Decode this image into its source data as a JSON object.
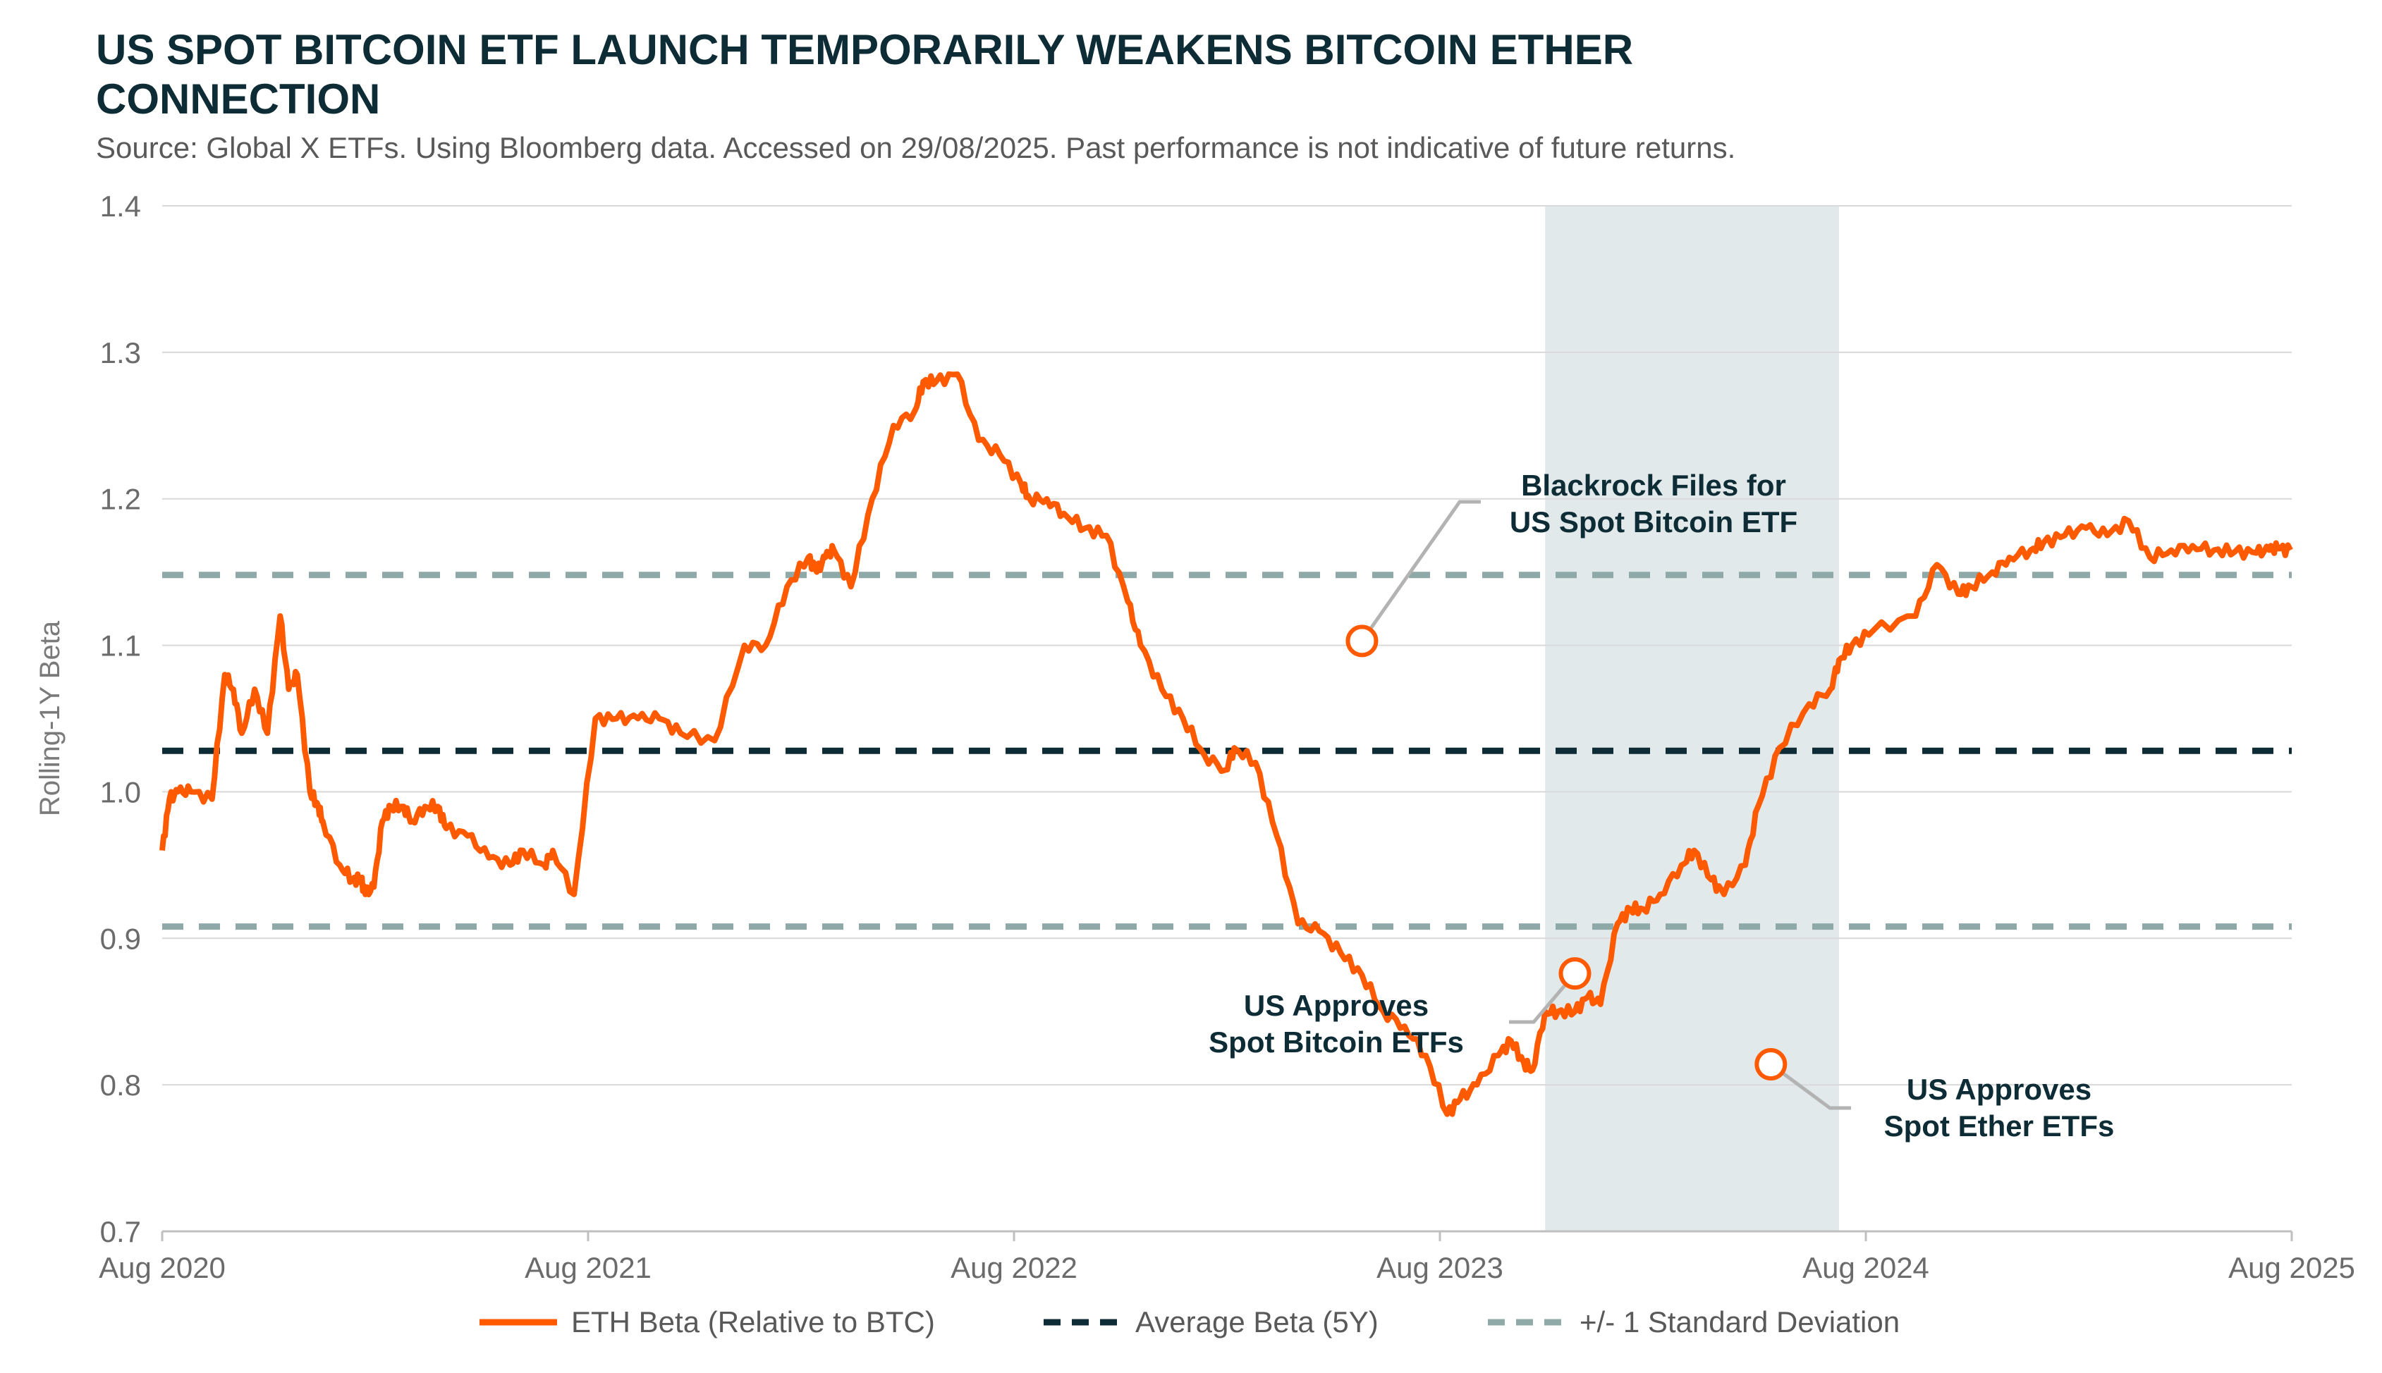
{
  "title": "US SPOT BITCOIN ETF LAUNCH TEMPORARILY WEAKENS BITCOIN ETHER CONNECTION",
  "subtitle": "Source: Global X ETFs. Using Bloomberg data. Accessed on 29/08/2025. Past performance is not indicative of future returns.",
  "colors": {
    "eth": "#ff5a00",
    "avg": "#0d2c35",
    "std": "#8fa9a9",
    "shade": "#e2e9ea",
    "grid": "#d9d9d9"
  },
  "chart_data": {
    "type": "line",
    "ylabel": "Rolling-1Y Beta",
    "ylim": [
      0.7,
      1.4
    ],
    "yticks": [
      "0.7",
      "0.8",
      "0.9",
      "1.0",
      "1.1",
      "1.2",
      "1.3",
      "1.4"
    ],
    "xlim": [
      2020.583,
      2025.583
    ],
    "xticks": [
      {
        "x": 2020.583,
        "label": "Aug 2020"
      },
      {
        "x": 2021.583,
        "label": "Aug 2021"
      },
      {
        "x": 2022.583,
        "label": "Aug 2022"
      },
      {
        "x": 2023.583,
        "label": "Aug 2023"
      },
      {
        "x": 2024.583,
        "label": "Aug 2024"
      },
      {
        "x": 2025.583,
        "label": "Aug 2025"
      }
    ],
    "shaded_region": [
      2023.83,
      2024.52
    ],
    "reference_lines": [
      {
        "name": "Average Beta (5Y)",
        "y": 1.028,
        "style": "avg"
      },
      {
        "name": "+/- 1 Standard Deviation",
        "y": 1.148,
        "style": "std"
      },
      {
        "name": "+/- 1 Standard Deviation",
        "y": 0.908,
        "style": "std"
      }
    ],
    "series": [
      {
        "name": "ETH Beta (Relative to BTC)",
        "x": [
          2020.583,
          2020.6,
          2020.62,
          2020.65,
          2020.7,
          2020.73,
          2020.75,
          2020.77,
          2020.8,
          2020.83,
          2020.86,
          2020.88,
          2020.9,
          2020.93,
          2020.95,
          2020.96,
          2021.0,
          2021.03,
          2021.05,
          2021.06,
          2021.08,
          2021.1,
          2021.12,
          2021.15,
          2021.17,
          2021.2,
          2021.23,
          2021.25,
          2021.3,
          2021.35,
          2021.4,
          2021.43,
          2021.48,
          2021.5,
          2021.55,
          2021.6,
          2021.65,
          2021.7,
          2021.75,
          2021.8,
          2021.88,
          2021.95,
          2022.0,
          2022.05,
          2022.1,
          2022.12,
          2022.14,
          2022.16,
          2022.2,
          2022.25,
          2022.3,
          2022.35,
          2022.37,
          2022.4,
          2022.45,
          2022.5,
          2022.55,
          2022.6,
          2022.62,
          2022.66,
          2022.7,
          2022.75,
          2022.8,
          2022.85,
          2022.88,
          2022.93,
          2022.98,
          2023.03,
          2023.08,
          2023.1,
          2023.15,
          2023.2,
          2023.25,
          2023.3,
          2023.35,
          2023.4,
          2023.45,
          2023.5,
          2023.55,
          2023.6,
          2023.63,
          2023.67,
          2023.72,
          2023.75,
          2023.78,
          2023.8,
          2023.83,
          2023.86,
          2023.9,
          2023.93,
          2023.96,
          2024.0,
          2024.03,
          2024.06,
          2024.1,
          2024.15,
          2024.18,
          2024.22,
          2024.25,
          2024.3,
          2024.33,
          2024.38,
          2024.45,
          2024.5,
          2024.52,
          2024.55,
          2024.6,
          2024.7,
          2024.75,
          2024.8,
          2024.83,
          2024.88,
          2024.92,
          2024.97,
          2025.0,
          2025.05,
          2025.1,
          2025.15,
          2025.2,
          2025.25,
          2025.3,
          2025.35,
          2025.4,
          2025.45,
          2025.5,
          2025.53,
          2025.55,
          2025.58
        ],
        "y": [
          0.96,
          0.995,
          1.0,
          1.0,
          0.995,
          1.08,
          1.07,
          1.04,
          1.07,
          1.04,
          1.12,
          1.07,
          1.08,
          1.0,
          0.99,
          0.98,
          0.95,
          0.94,
          0.94,
          0.93,
          0.935,
          0.98,
          0.99,
          0.99,
          0.98,
          0.99,
          0.99,
          0.975,
          0.97,
          0.955,
          0.95,
          0.96,
          0.95,
          0.96,
          0.93,
          1.05,
          1.05,
          1.05,
          1.05,
          1.04,
          1.035,
          1.1,
          1.1,
          1.14,
          1.16,
          1.15,
          1.16,
          1.165,
          1.14,
          1.2,
          1.25,
          1.26,
          1.28,
          1.28,
          1.285,
          1.24,
          1.23,
          1.21,
          1.2,
          1.2,
          1.19,
          1.18,
          1.175,
          1.13,
          1.1,
          1.07,
          1.05,
          1.025,
          1.015,
          1.03,
          1.02,
          0.97,
          0.91,
          0.905,
          0.89,
          0.875,
          0.85,
          0.84,
          0.82,
          0.78,
          0.79,
          0.8,
          0.82,
          0.83,
          0.815,
          0.81,
          0.85,
          0.85,
          0.85,
          0.86,
          0.855,
          0.91,
          0.92,
          0.92,
          0.93,
          0.95,
          0.96,
          0.94,
          0.93,
          0.95,
          0.99,
          1.03,
          1.06,
          1.07,
          1.09,
          1.1,
          1.11,
          1.12,
          1.155,
          1.135,
          1.14,
          1.15,
          1.16,
          1.165,
          1.17,
          1.175,
          1.18,
          1.175,
          1.185,
          1.16,
          1.165,
          1.168,
          1.165,
          1.164,
          1.163,
          1.165,
          1.166,
          1.165
        ],
        "comment": "sampled curve"
      }
    ],
    "annotations": [
      {
        "id": "blackrock",
        "x": 2023.4,
        "y": 1.103,
        "lines": [
          "Blackrock Files for",
          "US Spot Bitcoin ETF"
        ]
      },
      {
        "id": "btc-etf",
        "x": 2023.9,
        "y": 0.876,
        "lines": [
          "US Approves",
          "Spot Bitcoin ETFs"
        ]
      },
      {
        "id": "eth-etf",
        "x": 2024.36,
        "y": 0.814,
        "lines": [
          "US Approves",
          "Spot Ether ETFs"
        ]
      }
    ],
    "legend": [
      {
        "label": "ETH Beta (Relative to BTC)",
        "style": "eth"
      },
      {
        "label": "Average Beta (5Y)",
        "style": "avg"
      },
      {
        "label": "+/- 1 Standard Deviation",
        "style": "std"
      }
    ],
    "legend_position": "bottom"
  }
}
